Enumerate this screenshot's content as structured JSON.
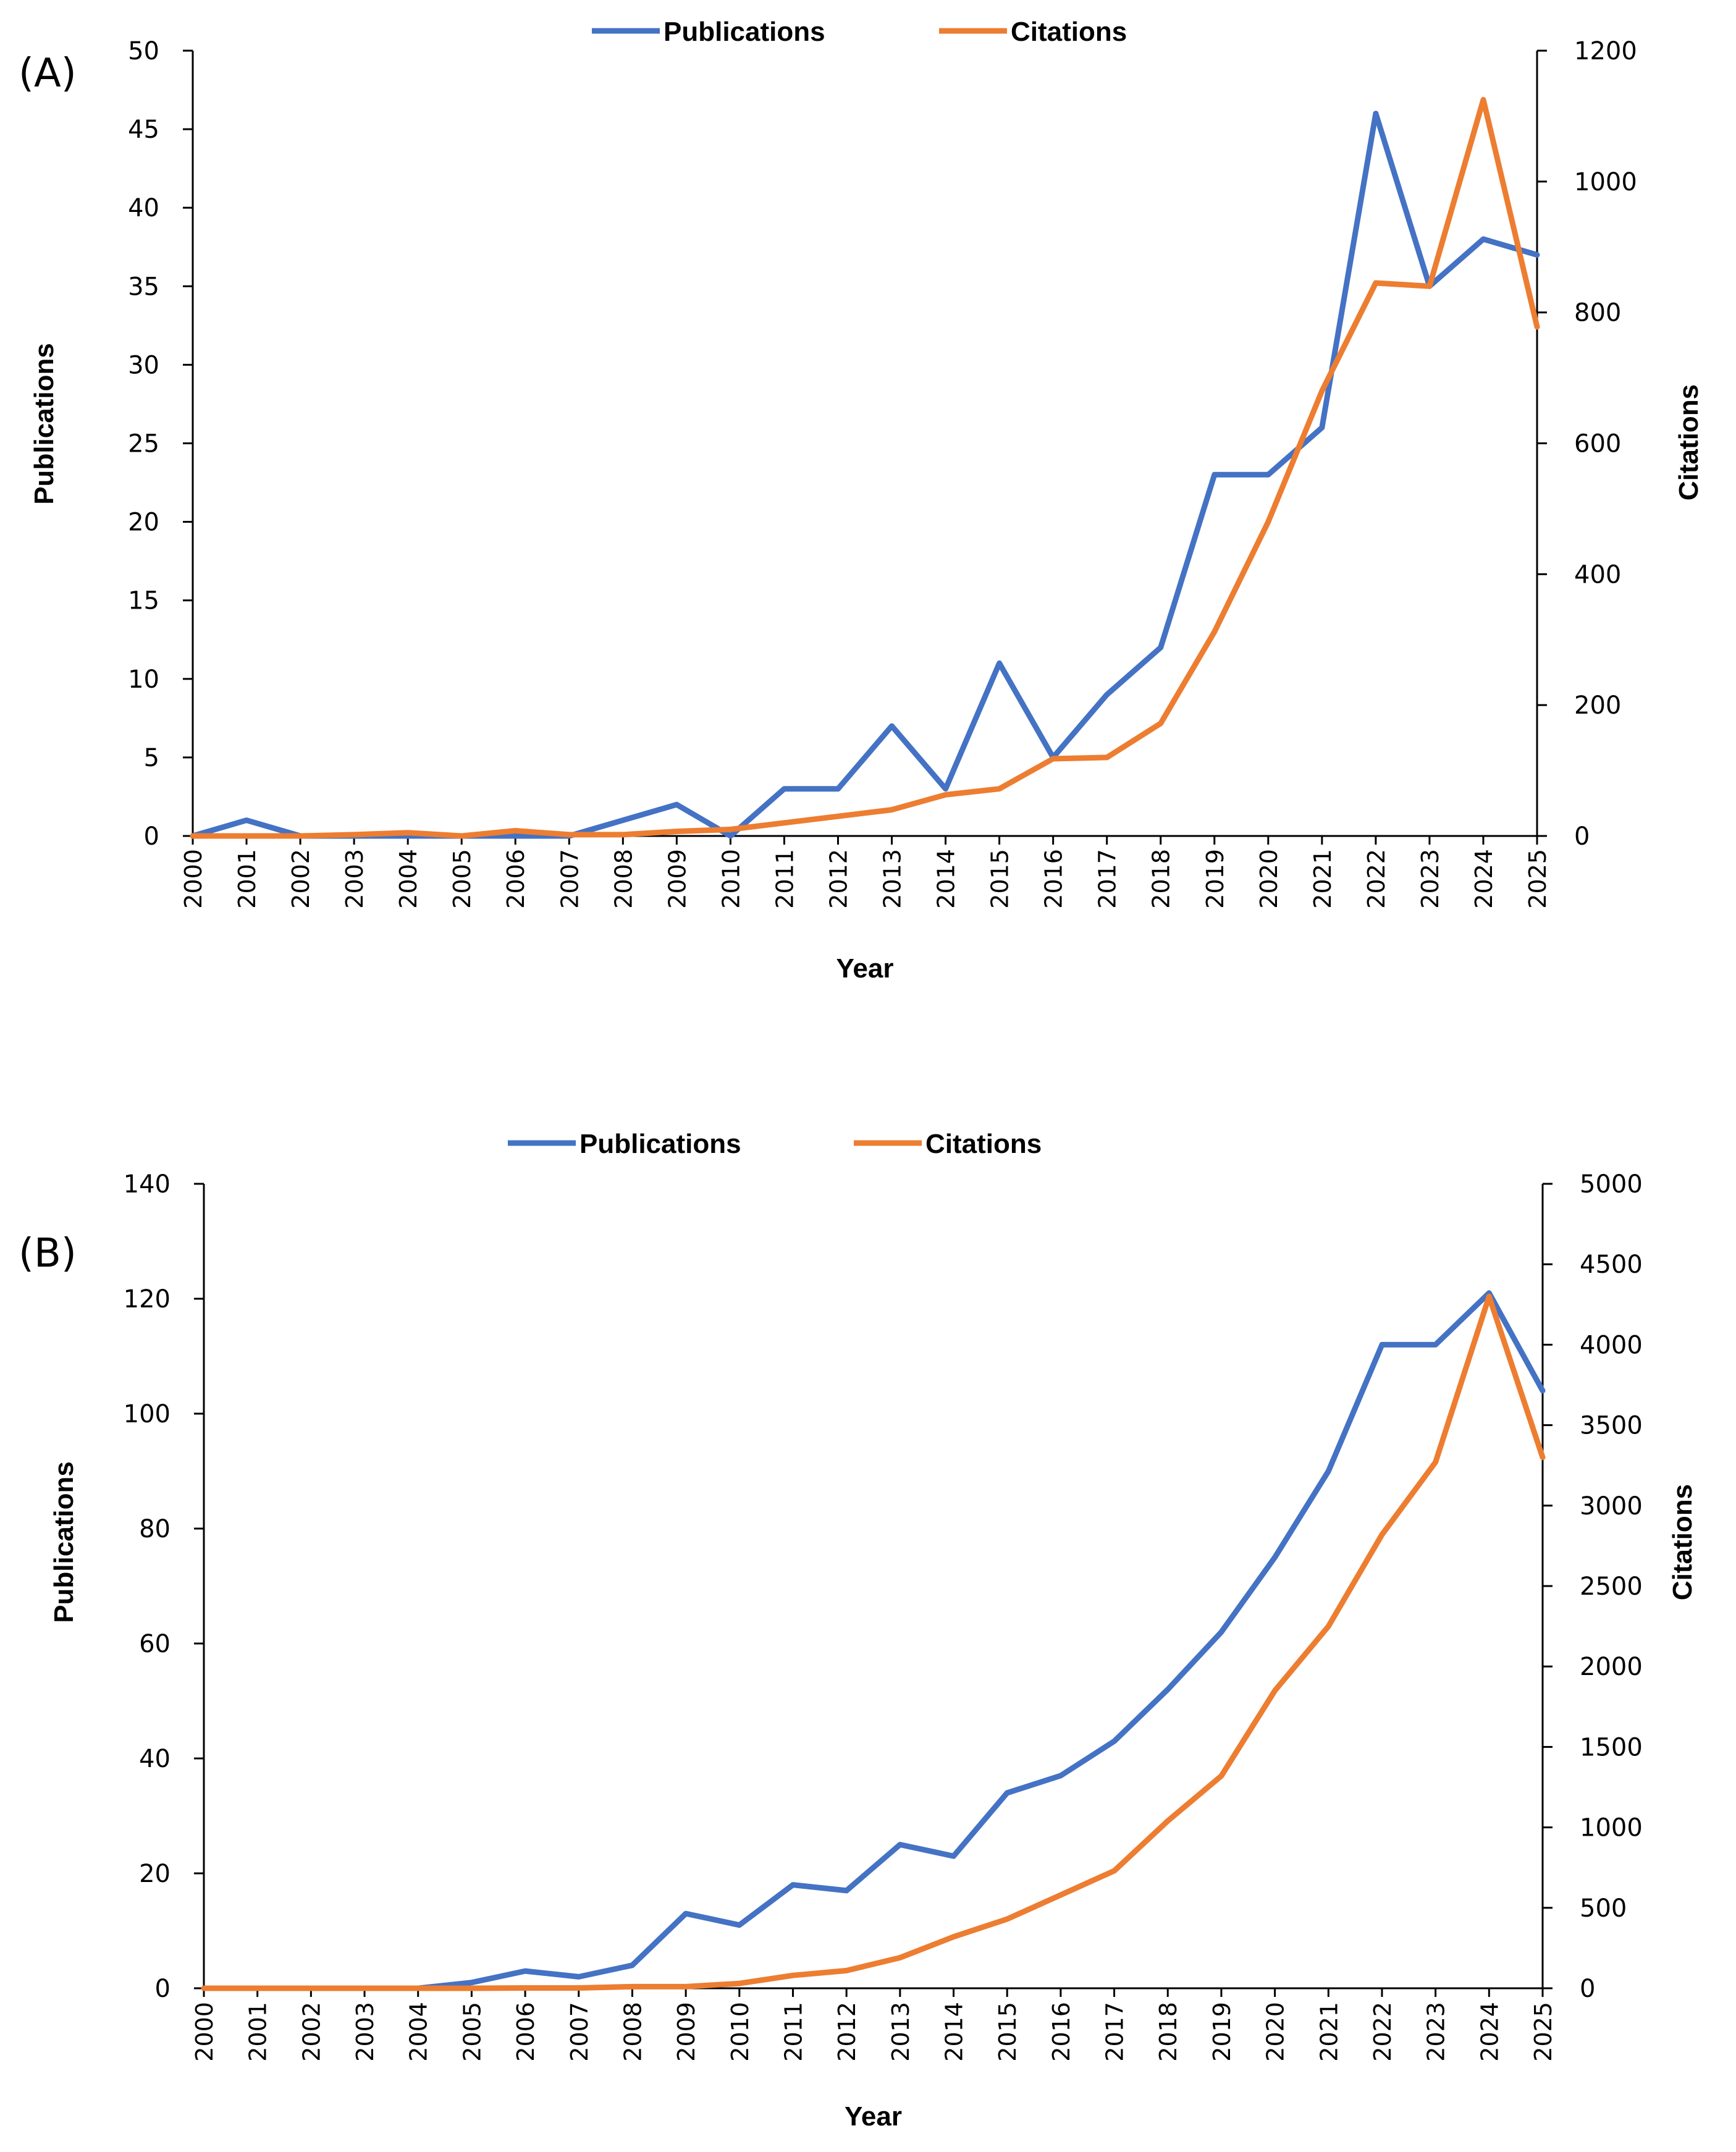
{
  "colors": {
    "publications": "#4472C4",
    "citations": "#ED7D31"
  },
  "chart_data": [
    {
      "type": "line",
      "panel_label": "(A)",
      "legend": [
        "Publications",
        "Citations"
      ],
      "xlabel": "Year",
      "ylabel": "Publications",
      "y2label": "Citations",
      "categories": [
        "2000",
        "2001",
        "2002",
        "2003",
        "2004",
        "2005",
        "2006",
        "2007",
        "2008",
        "2009",
        "2010",
        "2011",
        "2012",
        "2013",
        "2014",
        "2015",
        "2016",
        "2017",
        "2018",
        "2019",
        "2020",
        "2021",
        "2022",
        "2023",
        "2024",
        "2025"
      ],
      "ylim": [
        0,
        50
      ],
      "yticks": [
        0,
        5,
        10,
        15,
        20,
        25,
        30,
        35,
        40,
        45,
        50
      ],
      "y2lim": [
        0,
        1200
      ],
      "y2ticks": [
        0,
        200,
        400,
        600,
        800,
        1000,
        1200
      ],
      "series": [
        {
          "name": "Publications",
          "axis": "left",
          "values": [
            0,
            1,
            0,
            0,
            0,
            0,
            0,
            0,
            1,
            2,
            0,
            3,
            3,
            7,
            3,
            11,
            5,
            9,
            12,
            23,
            23,
            26,
            46,
            35,
            38,
            37
          ]
        },
        {
          "name": "Citations",
          "axis": "right",
          "values": [
            0,
            0,
            0,
            2,
            5,
            0,
            8,
            2,
            2,
            7,
            10,
            20,
            30,
            40,
            63,
            72,
            118,
            120,
            172,
            312,
            480,
            680,
            845,
            840,
            1125,
            778
          ]
        }
      ],
      "grid": false,
      "legend_position": "top"
    },
    {
      "type": "line",
      "panel_label": "(B)",
      "legend": [
        "Publications",
        "Citations"
      ],
      "xlabel": "Year",
      "ylabel": "Publications",
      "y2label": "Citations",
      "categories": [
        "2000",
        "2001",
        "2002",
        "2003",
        "2004",
        "2005",
        "2006",
        "2007",
        "2008",
        "2009",
        "2010",
        "2011",
        "2012",
        "2013",
        "2014",
        "2015",
        "2016",
        "2017",
        "2018",
        "2019",
        "2020",
        "2021",
        "2022",
        "2023",
        "2024",
        "2025"
      ],
      "ylim": [
        0,
        140
      ],
      "yticks": [
        0,
        20,
        40,
        60,
        80,
        100,
        120,
        140
      ],
      "y2lim": [
        0,
        5000
      ],
      "y2ticks": [
        0,
        500,
        1000,
        1500,
        2000,
        2500,
        3000,
        3500,
        4000,
        4500,
        5000
      ],
      "series": [
        {
          "name": "Publications",
          "axis": "left",
          "values": [
            0,
            0,
            0,
            0,
            0,
            1,
            3,
            2,
            4,
            13,
            11,
            18,
            17,
            25,
            23,
            34,
            37,
            43,
            52,
            62,
            75,
            90,
            112,
            112,
            121,
            104
          ]
        },
        {
          "name": "Citations",
          "axis": "right",
          "values": [
            0,
            0,
            0,
            0,
            0,
            0,
            2,
            2,
            10,
            10,
            30,
            80,
            110,
            190,
            320,
            430,
            580,
            730,
            1040,
            1320,
            1850,
            2250,
            2820,
            3270,
            4300,
            3300
          ]
        }
      ],
      "grid": false,
      "legend_position": "top"
    }
  ]
}
